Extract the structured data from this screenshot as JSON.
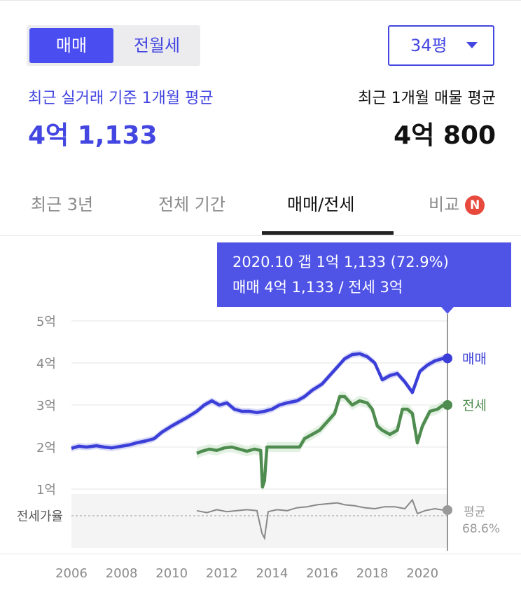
{
  "toggle": {
    "sale_label": "매매",
    "rent_label": "전월세"
  },
  "size_select": {
    "value": "34평"
  },
  "summary": {
    "left_label": "최근 실거래 기준 1개월 평균",
    "left_value": "4억 1,133",
    "right_label": "최근 1개월 매물 평균",
    "right_value": "4억 800"
  },
  "tabs": [
    {
      "label": "최근 3년"
    },
    {
      "label": "전체 기간"
    },
    {
      "label": "매매/전세"
    },
    {
      "label": "비교",
      "badge": "N"
    }
  ],
  "tooltip": {
    "line1": "2020.10  갭 1억 1,133 (72.9%)",
    "line2": "매매 4억 1,133 / 전세 3억"
  },
  "colors": {
    "sale": "#3b3fd8",
    "rent": "#4f8c4f",
    "ratio": "#888888",
    "accent": "#4346e0"
  },
  "chart_data": {
    "type": "line",
    "x_ticks": [
      "2006",
      "2008",
      "2010",
      "2012",
      "2014",
      "2016",
      "2018",
      "2020"
    ],
    "y_ticks": [
      "1억",
      "2억",
      "3억",
      "4억",
      "5억"
    ],
    "ylim": [
      1,
      5
    ],
    "xlim": [
      2006,
      2021
    ],
    "ratio_label": "전세가율",
    "series": [
      {
        "name": "매매",
        "x": [
          2006.0,
          2006.3,
          2006.6,
          2007.0,
          2007.3,
          2007.6,
          2008.0,
          2008.3,
          2008.6,
          2009.0,
          2009.3,
          2009.6,
          2010.0,
          2010.3,
          2010.6,
          2011.0,
          2011.3,
          2011.6,
          2011.9,
          2012.2,
          2012.5,
          2012.8,
          2013.1,
          2013.4,
          2013.7,
          2014.0,
          2014.3,
          2014.6,
          2015.0,
          2015.3,
          2015.6,
          2016.0,
          2016.3,
          2016.6,
          2016.9,
          2017.2,
          2017.5,
          2017.8,
          2018.1,
          2018.4,
          2018.7,
          2019.0,
          2019.3,
          2019.6,
          2019.9,
          2020.2,
          2020.5,
          2020.83
        ],
        "y": [
          1.97,
          2.02,
          2.0,
          2.03,
          2.0,
          1.98,
          2.02,
          2.05,
          2.1,
          2.15,
          2.2,
          2.35,
          2.5,
          2.6,
          2.7,
          2.85,
          3.0,
          3.1,
          3.0,
          3.05,
          2.9,
          2.85,
          2.85,
          2.82,
          2.85,
          2.9,
          3.0,
          3.05,
          3.1,
          3.2,
          3.35,
          3.5,
          3.7,
          3.9,
          4.1,
          4.2,
          4.22,
          4.15,
          4.0,
          3.6,
          3.7,
          3.75,
          3.55,
          3.3,
          3.8,
          3.95,
          4.05,
          4.11
        ]
      },
      {
        "name": "전세",
        "x": [
          2011.0,
          2011.2,
          2011.5,
          2011.8,
          2012.1,
          2012.4,
          2012.7,
          2013.0,
          2013.3,
          2013.55,
          2013.62,
          2013.7,
          2013.8,
          2014.0,
          2014.3,
          2014.6,
          2014.9,
          2015.1,
          2015.3,
          2015.6,
          2015.9,
          2016.2,
          2016.5,
          2016.7,
          2016.9,
          2017.2,
          2017.5,
          2017.8,
          2018.0,
          2018.2,
          2018.4,
          2018.7,
          2019.0,
          2019.2,
          2019.4,
          2019.6,
          2019.8,
          2020.0,
          2020.3,
          2020.6,
          2020.83
        ],
        "y": [
          1.85,
          1.9,
          1.95,
          1.92,
          1.98,
          2.0,
          1.95,
          1.9,
          1.95,
          1.92,
          1.05,
          1.2,
          2.0,
          2.0,
          2.0,
          2.0,
          2.0,
          2.0,
          2.2,
          2.3,
          2.4,
          2.6,
          2.8,
          3.2,
          3.2,
          3.0,
          3.1,
          3.05,
          2.9,
          2.5,
          2.4,
          2.3,
          2.4,
          2.9,
          2.9,
          2.8,
          2.1,
          2.5,
          2.85,
          2.9,
          3.0
        ]
      }
    ],
    "ratio_series": {
      "name": "평균",
      "value_label": "68.6%",
      "x": [
        2011.0,
        2011.4,
        2011.8,
        2012.2,
        2012.6,
        2013.0,
        2013.4,
        2013.6,
        2013.7,
        2013.85,
        2014.2,
        2014.6,
        2015.0,
        2015.4,
        2015.8,
        2016.2,
        2016.6,
        2016.9,
        2017.3,
        2017.7,
        2018.1,
        2018.5,
        2018.9,
        2019.3,
        2019.6,
        2019.8,
        2020.1,
        2020.5,
        2020.83
      ],
      "y": [
        68,
        66,
        69,
        67,
        68,
        69,
        68,
        45,
        40,
        67,
        69,
        68,
        71,
        72,
        74,
        75,
        76,
        74,
        73,
        71,
        70,
        72,
        72,
        70,
        79,
        65,
        68,
        70,
        68.6
      ]
    }
  }
}
